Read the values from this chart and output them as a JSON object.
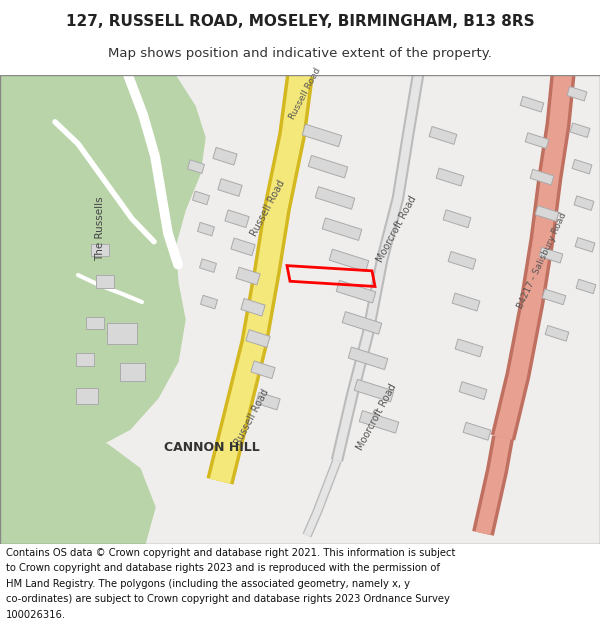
{
  "title_line1": "127, RUSSELL ROAD, MOSELEY, BIRMINGHAM, B13 8RS",
  "title_line2": "Map shows position and indicative extent of the property.",
  "footer_lines": [
    "Contains OS data © Crown copyright and database right 2021. This information is subject",
    "to Crown copyright and database rights 2023 and is reproduced with the permission of",
    "HM Land Registry. The polygons (including the associated geometry, namely x, y",
    "co-ordinates) are subject to Crown copyright and database rights 2023 Ordnance Survey",
    "100026316."
  ],
  "bg_color": "#ffffff",
  "green_park": "#b8d4a8",
  "road_yellow": "#f5e87a",
  "road_yellow_border": "#d4b820",
  "salmon_road": "#e8a090",
  "salmon_border": "#c07060",
  "plot_stroke": "#ff0000",
  "plot_linewidth": 2.0
}
